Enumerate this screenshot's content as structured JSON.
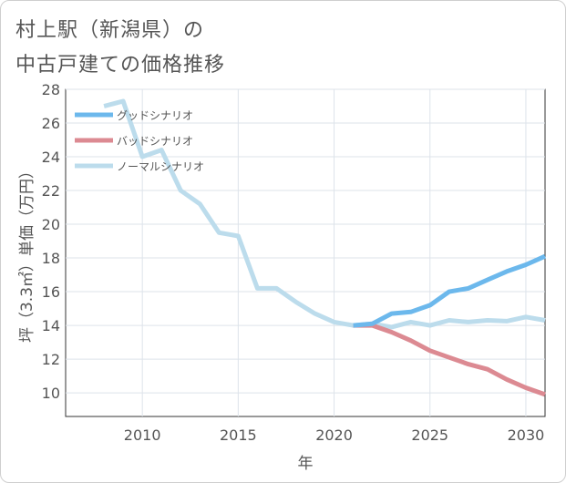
{
  "title_lines": [
    "村上駅（新潟県）の",
    "中古戸建ての価格推移"
  ],
  "chart_data": {
    "type": "line",
    "title": "村上駅（新潟県）の中古戸建ての価格推移",
    "xlabel": "年",
    "ylabel": "坪（3.3㎡）単価（万円）",
    "xlim": [
      2006,
      2031
    ],
    "ylim": [
      8.6,
      28
    ],
    "xticks": [
      2010,
      2015,
      2020,
      2025,
      2030
    ],
    "yticks": [
      10,
      12,
      14,
      16,
      18,
      20,
      22,
      24,
      26,
      28
    ],
    "grid": true,
    "legend_position": "top-left",
    "series": [
      {
        "name": "グッドシナリオ",
        "color": "#6cb8ec",
        "points": [
          [
            2021,
            14.0
          ],
          [
            2022,
            14.1
          ],
          [
            2023,
            14.7
          ],
          [
            2024,
            14.8
          ],
          [
            2025,
            15.2
          ],
          [
            2026,
            16.0
          ],
          [
            2027,
            16.2
          ],
          [
            2028,
            16.7
          ],
          [
            2029,
            17.2
          ],
          [
            2030,
            17.6
          ],
          [
            2031,
            18.1
          ]
        ]
      },
      {
        "name": "バッドシナリオ",
        "color": "#dc8a92",
        "points": [
          [
            2021,
            14.0
          ],
          [
            2022,
            14.0
          ],
          [
            2023,
            13.6
          ],
          [
            2024,
            13.1
          ],
          [
            2025,
            12.5
          ],
          [
            2026,
            12.1
          ],
          [
            2027,
            11.7
          ],
          [
            2028,
            11.4
          ],
          [
            2029,
            10.8
          ],
          [
            2030,
            10.3
          ],
          [
            2031,
            9.9
          ]
        ]
      },
      {
        "name": "ノーマルシナリオ",
        "color": "#bcdcec",
        "points": [
          [
            2008,
            27.0
          ],
          [
            2009,
            27.3
          ],
          [
            2010,
            24.0
          ],
          [
            2011,
            24.4
          ],
          [
            2012,
            22.0
          ],
          [
            2013,
            21.2
          ],
          [
            2014,
            19.5
          ],
          [
            2015,
            19.3
          ],
          [
            2016,
            16.2
          ],
          [
            2017,
            16.2
          ],
          [
            2018,
            15.4
          ],
          [
            2019,
            14.7
          ],
          [
            2020,
            14.2
          ],
          [
            2021,
            14.0
          ],
          [
            2022,
            14.1
          ],
          [
            2023,
            13.9
          ],
          [
            2024,
            14.2
          ],
          [
            2025,
            14.0
          ],
          [
            2026,
            14.3
          ],
          [
            2027,
            14.2
          ],
          [
            2028,
            14.3
          ],
          [
            2029,
            14.25
          ],
          [
            2030,
            14.5
          ],
          [
            2031,
            14.3
          ]
        ]
      }
    ]
  }
}
